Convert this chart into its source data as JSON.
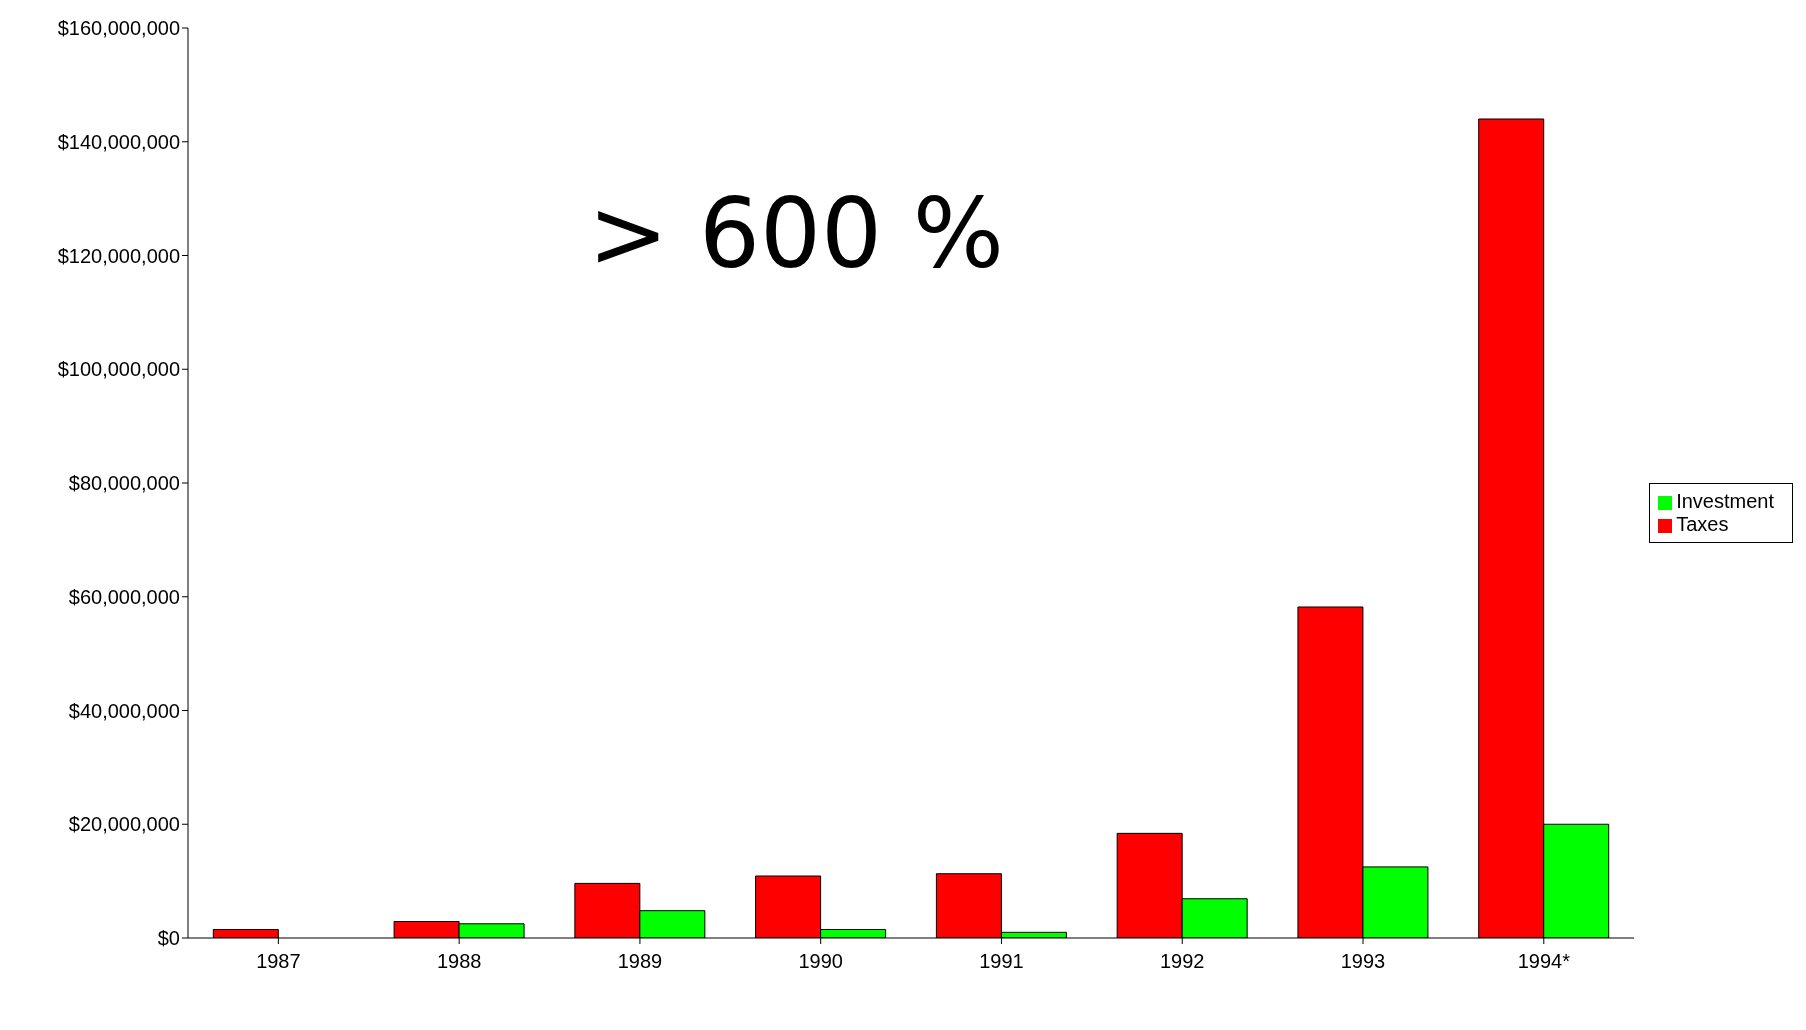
{
  "chart_data": {
    "type": "bar",
    "categories": [
      "1987",
      "1988",
      "1989",
      "1990",
      "1991",
      "1992",
      "1993",
      "1994*"
    ],
    "series": [
      {
        "name": "Taxes",
        "color": "#ff0000",
        "values": [
          1500000,
          2900000,
          9600000,
          10900000,
          11300000,
          18400000,
          58200000,
          144000000
        ]
      },
      {
        "name": "Investment",
        "color": "#00ff00",
        "values": [
          0,
          2500000,
          4800000,
          1500000,
          1000000,
          6900000,
          12500000,
          20000000
        ]
      }
    ],
    "ylim": [
      0,
      160000000
    ],
    "yticks": [
      {
        "value": 0,
        "label": "$0"
      },
      {
        "value": 20000000,
        "label": "$20,000,000"
      },
      {
        "value": 40000000,
        "label": "$40,000,000"
      },
      {
        "value": 60000000,
        "label": "$60,000,000"
      },
      {
        "value": 80000000,
        "label": "$80,000,000"
      },
      {
        "value": 100000000,
        "label": "$100,000,000"
      },
      {
        "value": 120000000,
        "label": "$120,000,000"
      },
      {
        "value": 140000000,
        "label": "$140,000,000"
      },
      {
        "value": 160000000,
        "label": "$160,000,000"
      }
    ],
    "annotations": [
      "> 600 %"
    ],
    "legend": "right",
    "grid": false
  }
}
